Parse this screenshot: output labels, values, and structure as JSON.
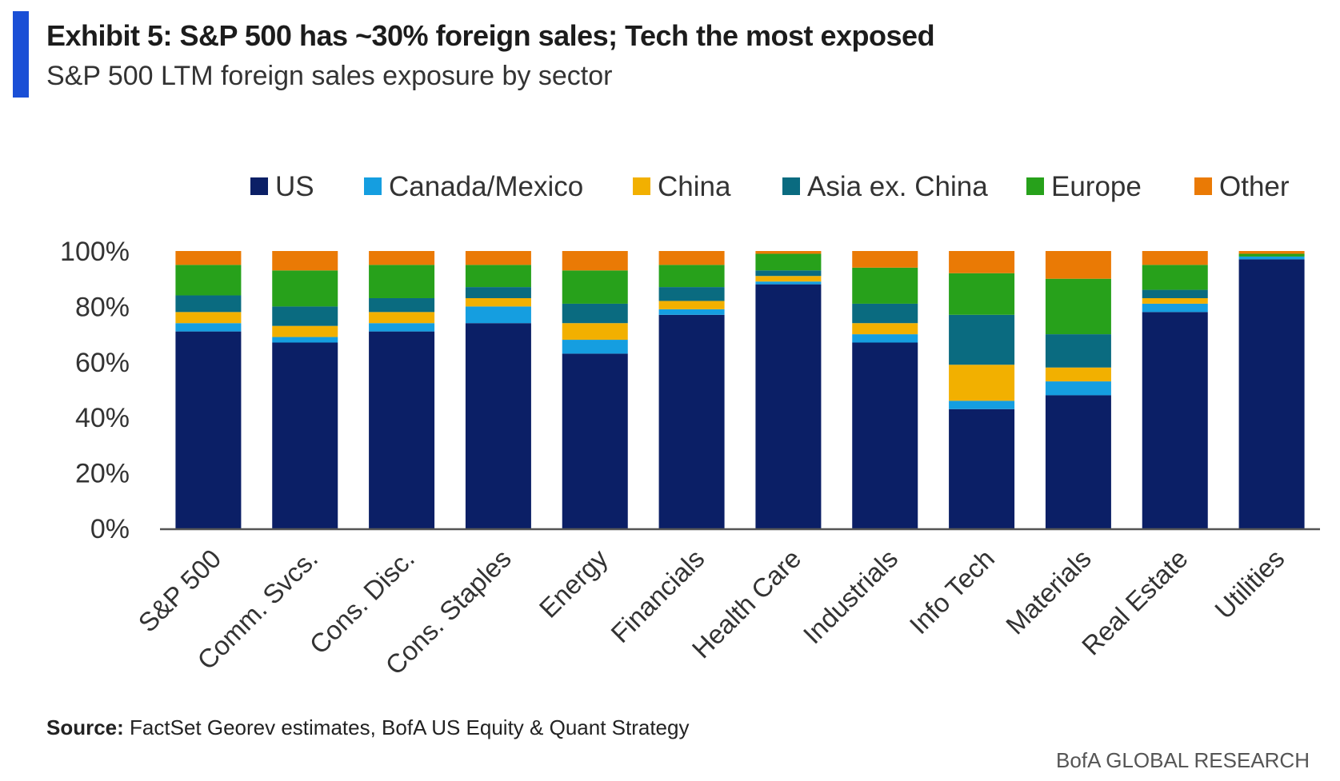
{
  "header": {
    "title": "Exhibit 5: S&P 500 has ~30% foreign sales; Tech the most exposed",
    "subtitle": "S&P 500 LTM foreign sales exposure by sector"
  },
  "footer": {
    "source_label": "Source:",
    "source_text": " FactSet Georev estimates, BofA US Equity & Quant Strategy",
    "brand": "BofA GLOBAL RESEARCH"
  },
  "chart_data": {
    "type": "bar",
    "stacked": true,
    "categories": [
      "S&P 500",
      "Comm. Svcs.",
      "Cons. Disc.",
      "Cons. Staples",
      "Energy",
      "Financials",
      "Health Care",
      "Industrials",
      "Info Tech",
      "Materials",
      "Real Estate",
      "Utilities"
    ],
    "series": [
      {
        "name": "US",
        "color": "#0b1f66",
        "values": [
          71,
          67,
          71,
          74,
          63,
          77,
          88,
          67,
          43,
          48,
          78,
          97
        ]
      },
      {
        "name": "Canada/Mexico",
        "color": "#159ee0",
        "values": [
          3,
          2,
          3,
          6,
          5,
          2,
          1,
          3,
          3,
          5,
          3,
          1
        ]
      },
      {
        "name": "China",
        "color": "#f2b000",
        "values": [
          4,
          4,
          4,
          3,
          6,
          3,
          2,
          4,
          13,
          5,
          2,
          0
        ]
      },
      {
        "name": "Asia ex. China",
        "color": "#0a6b80",
        "values": [
          6,
          7,
          5,
          4,
          7,
          5,
          2,
          7,
          18,
          12,
          3,
          0
        ]
      },
      {
        "name": "Europe",
        "color": "#27a11b",
        "values": [
          11,
          13,
          12,
          8,
          12,
          8,
          6,
          13,
          15,
          20,
          9,
          1
        ]
      },
      {
        "name": "Other",
        "color": "#ea7a05",
        "values": [
          5,
          7,
          5,
          5,
          7,
          5,
          1,
          6,
          8,
          10,
          5,
          1
        ]
      }
    ],
    "ylim": [
      0,
      100
    ],
    "yticks": [
      "0%",
      "20%",
      "40%",
      "60%",
      "80%",
      "100%"
    ],
    "legend_position": "top",
    "grid": false
  }
}
